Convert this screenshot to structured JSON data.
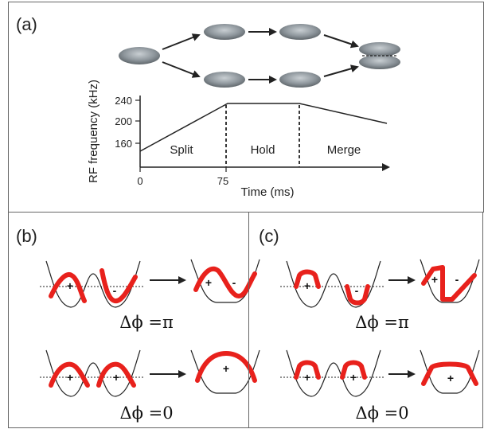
{
  "panel_a": {
    "label": "(a)",
    "ylabel": "RF frequency (kHz)",
    "xlabel": "Time (ms)",
    "y_ticks": [
      "240",
      "200",
      "160"
    ],
    "x_ticks": [
      "0",
      "75"
    ],
    "phases": [
      "Split",
      "Hold",
      "Merge"
    ]
  },
  "panel_b": {
    "label": "(b)",
    "top_phase": "Δϕ =π",
    "bottom_phase": "Δϕ =0",
    "plus": "+",
    "minus": "-"
  },
  "panel_c": {
    "label": "(c)",
    "top_phase": "Δϕ =π",
    "bottom_phase": "Δϕ =0",
    "plus": "+",
    "minus": "-"
  },
  "colors": {
    "wavefunction": "#e8211c",
    "cloud": "#8f979d",
    "line": "#222222"
  }
}
